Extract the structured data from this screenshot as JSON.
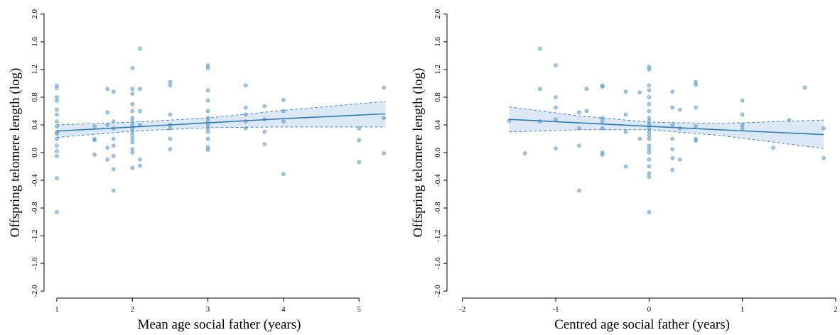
{
  "chart_data": [
    {
      "type": "scatter",
      "xlabel": "Mean age social father (years)",
      "ylabel": "Offspring telomere length (log)",
      "xlim": [
        0.85,
        5.45
      ],
      "ylim": [
        -2.05,
        2.05
      ],
      "xticks": [
        1,
        2,
        3,
        4,
        5
      ],
      "yticks": [
        {
          "value": -2,
          "label": "-2.0"
        },
        -1.6,
        -1.2,
        -0.8,
        -0.4,
        {
          "value": 0,
          "label": "0.0"
        },
        0.4,
        0.8,
        1.2,
        1.6,
        {
          "value": 2,
          "label": "2.0"
        }
      ],
      "color": "#4a8cc0",
      "x": [
        1,
        1,
        1,
        1,
        1,
        1,
        1,
        1,
        1,
        1,
        1,
        1,
        1,
        1,
        1,
        1,
        1.5,
        1.5,
        1.5,
        1.5,
        1.67,
        1.67,
        1.67,
        1.67,
        1.67,
        1.75,
        1.75,
        1.75,
        1.75,
        1.75,
        1.75,
        1.75,
        1.75,
        2,
        2,
        2,
        2,
        2,
        2,
        2,
        2,
        2,
        2,
        2,
        2,
        2,
        2,
        2,
        2,
        2.1,
        2.1,
        2.1,
        2.1,
        2.1,
        2.1,
        2.5,
        2.5,
        2.5,
        2.5,
        2.5,
        2.5,
        2.5,
        3,
        3,
        3,
        3,
        3,
        3,
        3,
        3,
        3,
        3,
        3,
        3,
        3,
        3.5,
        3.5,
        3.5,
        3.5,
        3.5,
        3.75,
        3.75,
        3.75,
        3.75,
        4,
        4,
        4,
        4,
        5,
        5,
        5,
        5.33,
        5.33,
        5.33
      ],
      "values": [
        0.97,
        0.93,
        0.8,
        0.75,
        0.62,
        0.55,
        0.45,
        0.38,
        0.3,
        0.27,
        0.2,
        0.1,
        0.02,
        -0.05,
        -0.37,
        -0.86,
        0.38,
        0.2,
        0.18,
        -0.03,
        0.92,
        0.58,
        0.4,
        0.07,
        -0.1,
        0.88,
        0.45,
        0.35,
        0.2,
        0.1,
        -0.05,
        -0.24,
        -0.55,
        1.22,
        0.92,
        0.85,
        0.7,
        0.6,
        0.5,
        0.45,
        0.4,
        0.35,
        0.3,
        0.25,
        0.2,
        0.15,
        0.05,
        0.0,
        -0.22,
        1.5,
        0.92,
        0.6,
        0.4,
        -0.1,
        -0.19,
        1.02,
        0.97,
        0.55,
        0.4,
        0.35,
        0.2,
        0.05,
        1.26,
        1.22,
        0.9,
        0.75,
        0.6,
        0.5,
        0.45,
        0.4,
        0.35,
        0.3,
        0.2,
        0.08,
        0.04,
        0.97,
        0.65,
        0.55,
        0.45,
        0.35,
        0.67,
        0.48,
        0.3,
        0.12,
        0.76,
        0.6,
        0.45,
        -0.31,
        0.35,
        0.18,
        -0.14,
        0.94,
        0.5,
        -0.01
      ],
      "fit": {
        "x": [
          1,
          2,
          3,
          4,
          5.35
        ],
        "values": [
          0.31,
          0.37,
          0.43,
          0.49,
          0.56
        ],
        "lower": [
          0.22,
          0.31,
          0.36,
          0.37,
          0.37
        ],
        "upper": [
          0.4,
          0.44,
          0.5,
          0.61,
          0.74
        ]
      }
    },
    {
      "type": "scatter",
      "xlabel": "Centred age social father (years)",
      "ylabel": "Offspring telomere length (log)",
      "xlim": [
        -2.15,
        2.0
      ],
      "ylim": [
        -2.05,
        2.05
      ],
      "xticks": [
        -2,
        -1,
        0,
        1,
        2
      ],
      "yticks": [
        {
          "value": -2,
          "label": "-2.0"
        },
        -1.6,
        -1.2,
        -0.8,
        -0.4,
        {
          "value": 0,
          "label": "0.0"
        },
        0.4,
        0.8,
        1.2,
        1.6,
        {
          "value": 2,
          "label": "2.0"
        }
      ],
      "color": "#4a8cc0",
      "x": [
        -1.5,
        -1.33,
        -1.17,
        -1.17,
        -1.17,
        -1,
        -1,
        -1,
        -1,
        -1,
        -0.75,
        -0.75,
        -0.75,
        -0.75,
        -0.67,
        -0.67,
        -0.5,
        -0.5,
        -0.5,
        -0.5,
        -0.5,
        -0.5,
        -0.5,
        -0.25,
        -0.25,
        -0.25,
        -0.25,
        -0.1,
        -0.1,
        0,
        0,
        0,
        0,
        0,
        0,
        0,
        0,
        0,
        0,
        0,
        0,
        0,
        0,
        0,
        0,
        0,
        0,
        0,
        0,
        0,
        0,
        0.25,
        0.25,
        0.25,
        0.25,
        0.25,
        0.25,
        0.25,
        0.33,
        0.33,
        0.33,
        0.5,
        0.5,
        0.5,
        0.5,
        0.5,
        0.5,
        1,
        1,
        1,
        1,
        1.33,
        1.5,
        1.67,
        1.87,
        1.87
      ],
      "values": [
        0.46,
        -0.01,
        1.5,
        0.92,
        0.45,
        1.26,
        0.8,
        0.65,
        0.48,
        0.06,
        0.58,
        0.35,
        0.1,
        -0.55,
        0.92,
        0.6,
        0.97,
        0.95,
        0.5,
        0.45,
        0.35,
        0.0,
        -0.03,
        0.88,
        0.55,
        0.3,
        -0.2,
        0.87,
        0.2,
        1.24,
        1.2,
        0.97,
        0.9,
        0.8,
        0.7,
        0.6,
        0.5,
        0.45,
        0.4,
        0.35,
        0.3,
        0.25,
        0.2,
        0.1,
        0.05,
        0.0,
        -0.1,
        -0.2,
        -0.3,
        -0.35,
        -0.86,
        0.88,
        0.65,
        0.4,
        0.2,
        0.05,
        -0.08,
        -0.25,
        0.62,
        0.35,
        -0.1,
        1.02,
        0.98,
        0.65,
        0.38,
        0.2,
        0.17,
        0.75,
        0.55,
        0.4,
        0.35,
        0.07,
        0.47,
        0.94,
        0.35,
        -0.08
      ],
      "fit": {
        "x": [
          -1.5,
          -0.75,
          0,
          0.75,
          1.87
        ],
        "values": [
          0.48,
          0.43,
          0.38,
          0.33,
          0.26
        ],
        "lower": [
          0.3,
          0.33,
          0.33,
          0.25,
          0.06
        ],
        "upper": [
          0.66,
          0.53,
          0.44,
          0.42,
          0.47
        ]
      }
    }
  ]
}
